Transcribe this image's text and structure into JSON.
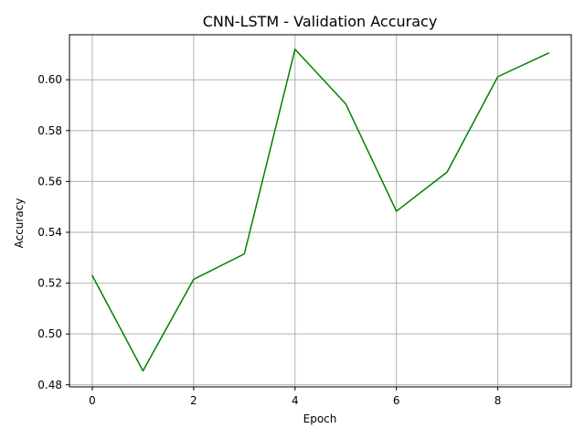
{
  "chart_data": {
    "type": "line",
    "title": "CNN-LSTM - Validation Accuracy",
    "xlabel": "Epoch",
    "ylabel": "Accuracy",
    "x": [
      0,
      1,
      2,
      3,
      4,
      5,
      6,
      7,
      8,
      9
    ],
    "series": [
      {
        "values": [
          0.523,
          0.4855,
          0.5215,
          0.5315,
          0.612,
          0.5905,
          0.5483,
          0.5637,
          0.6012,
          0.6105
        ],
        "color": "#008000"
      }
    ],
    "xlim": [
      -0.45,
      9.45
    ],
    "ylim": [
      0.4792,
      0.6177
    ],
    "x_ticks": [
      0,
      2,
      4,
      6,
      8
    ],
    "y_ticks": [
      0.48,
      0.5,
      0.52,
      0.54,
      0.56,
      0.58,
      0.6
    ],
    "x_tick_labels": [
      "0",
      "2",
      "4",
      "6",
      "8"
    ],
    "y_tick_labels": [
      "0.48",
      "0.50",
      "0.52",
      "0.54",
      "0.56",
      "0.58",
      "0.60"
    ],
    "grid": true,
    "grid_color": "#b0b0b0",
    "axis_color": "#000000"
  }
}
